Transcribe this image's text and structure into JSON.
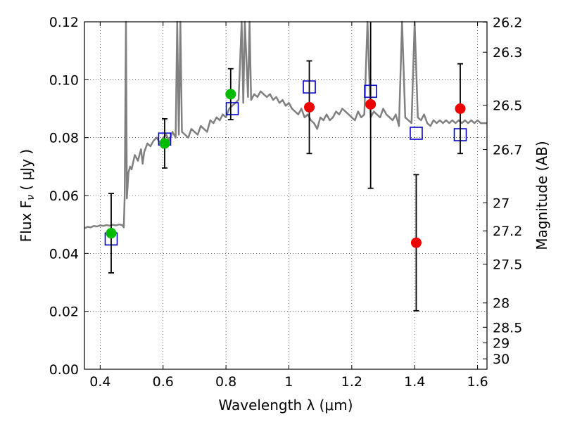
{
  "chart_data": {
    "type": "scatter",
    "xlabel": "Wavelength  λ (μm)",
    "ylabel": "Flux  F",
    "ylabel_sub": "ν",
    "ylabel_unit": "  ( μJy )",
    "y2label": "Magnitude (AB)",
    "xlim": [
      0.35,
      1.63
    ],
    "ylim": [
      0,
      0.12
    ],
    "grid": true,
    "x_ticks": [
      0.4,
      0.6,
      0.8,
      1.0,
      1.2,
      1.4,
      1.6
    ],
    "x_tick_labels": [
      "0.4",
      "0.6",
      "0.8",
      "1",
      "1.2",
      "1.4",
      "1.6"
    ],
    "y_ticks": [
      0,
      0.02,
      0.04,
      0.06,
      0.08,
      0.1,
      0.12
    ],
    "y_tick_labels": [
      "0.00",
      "0.02",
      "0.04",
      "0.06",
      "0.08",
      "0.10",
      "0.12"
    ],
    "y2_ticks": [
      {
        "flux": 0.1199,
        "label": "26.2"
      },
      {
        "flux": 0.1095,
        "label": "26.3"
      },
      {
        "flux": 0.0912,
        "label": "26.5"
      },
      {
        "flux": 0.0759,
        "label": "26.7"
      },
      {
        "flux": 0.0575,
        "label": "27"
      },
      {
        "flux": 0.0478,
        "label": "27.2"
      },
      {
        "flux": 0.0363,
        "label": "27.5"
      },
      {
        "flux": 0.0229,
        "label": "28"
      },
      {
        "flux": 0.0145,
        "label": "28.5"
      },
      {
        "flux": 0.0091,
        "label": "29"
      },
      {
        "flux": 0.0036,
        "label": "30"
      }
    ],
    "series": [
      {
        "marker": "line",
        "color": "#808080",
        "x": [
          0.35,
          0.36,
          0.37,
          0.38,
          0.39,
          0.4,
          0.41,
          0.42,
          0.43,
          0.44,
          0.45,
          0.46,
          0.47,
          0.475,
          0.478,
          0.482,
          0.485,
          0.49,
          0.495,
          0.5,
          0.51,
          0.52,
          0.53,
          0.535,
          0.54,
          0.55,
          0.56,
          0.57,
          0.58,
          0.59,
          0.6,
          0.61,
          0.62,
          0.63,
          0.64,
          0.645,
          0.65,
          0.655,
          0.66,
          0.67,
          0.68,
          0.69,
          0.7,
          0.71,
          0.72,
          0.73,
          0.74,
          0.75,
          0.76,
          0.77,
          0.78,
          0.79,
          0.8,
          0.81,
          0.82,
          0.83,
          0.84,
          0.85,
          0.855,
          0.86,
          0.87,
          0.875,
          0.88,
          0.89,
          0.9,
          0.91,
          0.92,
          0.93,
          0.94,
          0.95,
          0.96,
          0.97,
          0.98,
          0.99,
          1.0,
          1.01,
          1.02,
          1.03,
          1.04,
          1.05,
          1.06,
          1.07,
          1.08,
          1.09,
          1.1,
          1.11,
          1.12,
          1.13,
          1.14,
          1.15,
          1.16,
          1.17,
          1.18,
          1.19,
          1.2,
          1.21,
          1.22,
          1.23,
          1.24,
          1.25,
          1.26,
          1.27,
          1.28,
          1.29,
          1.3,
          1.31,
          1.32,
          1.33,
          1.34,
          1.35,
          1.36,
          1.37,
          1.38,
          1.39,
          1.4,
          1.41,
          1.42,
          1.43,
          1.44,
          1.45,
          1.46,
          1.47,
          1.48,
          1.49,
          1.5,
          1.51,
          1.52,
          1.53,
          1.54,
          1.55,
          1.56,
          1.57,
          1.58,
          1.59,
          1.6,
          1.61,
          1.62,
          1.63
        ],
        "y": [
          0.0487,
          0.0492,
          0.049,
          0.0495,
          0.0493,
          0.0497,
          0.0495,
          0.0498,
          0.0496,
          0.0499,
          0.0497,
          0.05,
          0.0498,
          0.049,
          0.06,
          0.12,
          0.059,
          0.068,
          0.07,
          0.069,
          0.074,
          0.072,
          0.076,
          0.071,
          0.075,
          0.078,
          0.077,
          0.079,
          0.08,
          0.078,
          0.08,
          0.081,
          0.079,
          0.082,
          0.08,
          0.12,
          0.081,
          0.12,
          0.082,
          0.081,
          0.08,
          0.083,
          0.082,
          0.081,
          0.084,
          0.083,
          0.082,
          0.086,
          0.085,
          0.087,
          0.086,
          0.088,
          0.087,
          0.09,
          0.091,
          0.092,
          0.093,
          0.12,
          0.092,
          0.12,
          0.094,
          0.12,
          0.093,
          0.095,
          0.094,
          0.096,
          0.095,
          0.094,
          0.095,
          0.093,
          0.094,
          0.092,
          0.093,
          0.091,
          0.092,
          0.09,
          0.089,
          0.088,
          0.09,
          0.087,
          0.088,
          0.086,
          0.085,
          0.083,
          0.087,
          0.086,
          0.088,
          0.086,
          0.087,
          0.089,
          0.088,
          0.09,
          0.089,
          0.088,
          0.087,
          0.086,
          0.089,
          0.087,
          0.088,
          0.12,
          0.087,
          0.089,
          0.088,
          0.087,
          0.09,
          0.088,
          0.087,
          0.086,
          0.088,
          0.084,
          0.12,
          0.087,
          0.086,
          0.085,
          0.12,
          0.087,
          0.086,
          0.088,
          0.085,
          0.084,
          0.086,
          0.085,
          0.086,
          0.085,
          0.086,
          0.085,
          0.086,
          0.085,
          0.086,
          0.085,
          0.086,
          0.085,
          0.086,
          0.085,
          0.086,
          0.085,
          0.085,
          0.085
        ]
      },
      {
        "marker": "square",
        "color": "#0000cc",
        "x": [
          0.435,
          0.605,
          0.82,
          1.065,
          1.26,
          1.405,
          1.545
        ],
        "y": [
          0.045,
          0.0795,
          0.09,
          0.0975,
          0.096,
          0.0815,
          0.081
        ]
      },
      {
        "marker": "circle",
        "color": "#00bb00",
        "x": [
          0.435,
          0.605,
          0.815
        ],
        "y": [
          0.047,
          0.078,
          0.095
        ],
        "yerr": [
          0.0137,
          0.0085,
          0.0088
        ]
      },
      {
        "marker": "circle",
        "color": "#ee0000",
        "x": [
          1.065,
          1.26,
          1.405,
          1.545
        ],
        "y": [
          0.0905,
          0.0915,
          0.0437,
          0.09
        ],
        "yerr": [
          0.016,
          0.029,
          0.0235,
          0.0155
        ]
      }
    ]
  }
}
